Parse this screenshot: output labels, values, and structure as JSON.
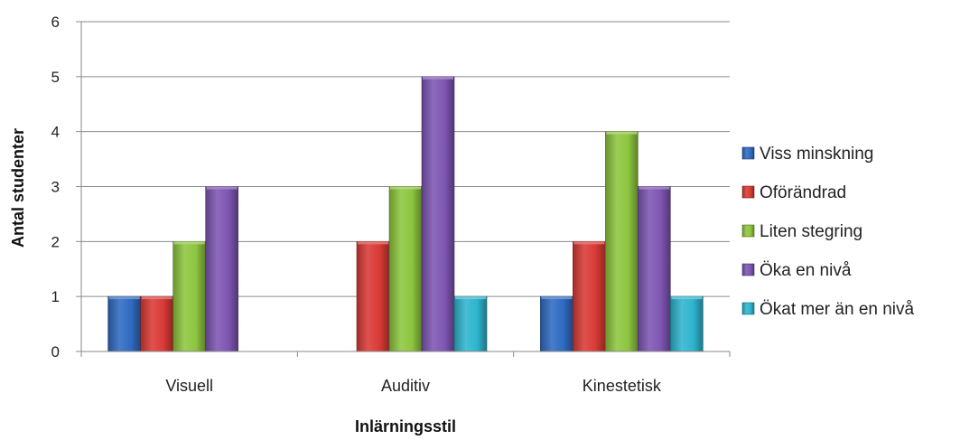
{
  "chart_data": {
    "type": "bar",
    "title": "",
    "xlabel": "Inlärningsstil",
    "ylabel": "Antal studenter",
    "ylim": [
      0,
      6
    ],
    "yticks": [
      "0",
      "1",
      "2",
      "3",
      "4",
      "5",
      "6"
    ],
    "categories": [
      "Visuell",
      "Auditiv",
      "Kinestetisk"
    ],
    "series": [
      {
        "name": "Viss minskning",
        "values": [
          1,
          0,
          1
        ],
        "color": "#2F6BC2"
      },
      {
        "name": "Oförändrad",
        "values": [
          1,
          2,
          2
        ],
        "color": "#D93A36"
      },
      {
        "name": "Liten stegring",
        "values": [
          2,
          3,
          4
        ],
        "color": "#8DC63F"
      },
      {
        "name": "Öka en nivå",
        "values": [
          3,
          5,
          3
        ],
        "color": "#7E56B3"
      },
      {
        "name": "Ökat mer än en nivå",
        "values": [
          0,
          1,
          1
        ],
        "color": "#2FB5CF"
      }
    ],
    "grid": true,
    "legend_position": "right"
  }
}
